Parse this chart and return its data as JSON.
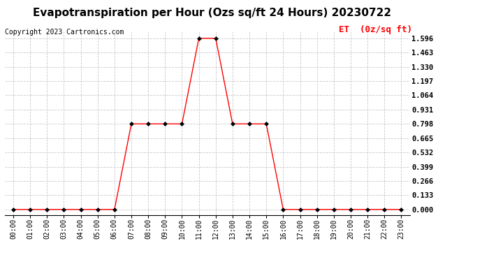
{
  "title": "Evapotranspiration per Hour (Ozs sq/ft 24 Hours) 20230722",
  "copyright_text": "Copyright 2023 Cartronics.com",
  "legend_label": "ET  (0z/sq ft)",
  "hours": [
    "00:00",
    "01:00",
    "02:00",
    "03:00",
    "04:00",
    "05:00",
    "06:00",
    "07:00",
    "08:00",
    "09:00",
    "10:00",
    "11:00",
    "12:00",
    "13:00",
    "14:00",
    "15:00",
    "16:00",
    "17:00",
    "18:00",
    "19:00",
    "20:00",
    "21:00",
    "22:00",
    "23:00"
  ],
  "values": [
    0.0,
    0.0,
    0.0,
    0.0,
    0.0,
    0.0,
    0.0,
    0.798,
    0.798,
    0.798,
    0.798,
    1.596,
    1.596,
    0.798,
    0.798,
    0.798,
    0.0,
    0.0,
    0.0,
    0.0,
    0.0,
    0.0,
    0.0,
    0.0
  ],
  "y_ticks": [
    0.0,
    0.133,
    0.266,
    0.399,
    0.532,
    0.665,
    0.798,
    0.931,
    1.064,
    1.197,
    1.33,
    1.463,
    1.596
  ],
  "ylim_min": -0.05,
  "ylim_max": 1.66,
  "line_color": "#ff0000",
  "marker_color": "#000000",
  "grid_color": "#c8c8c8",
  "background_color": "#ffffff",
  "title_fontsize": 11,
  "copyright_fontsize": 7,
  "legend_fontsize": 8,
  "legend_color": "#ff0000",
  "tick_label_fontsize": 7,
  "marker_size": 3
}
